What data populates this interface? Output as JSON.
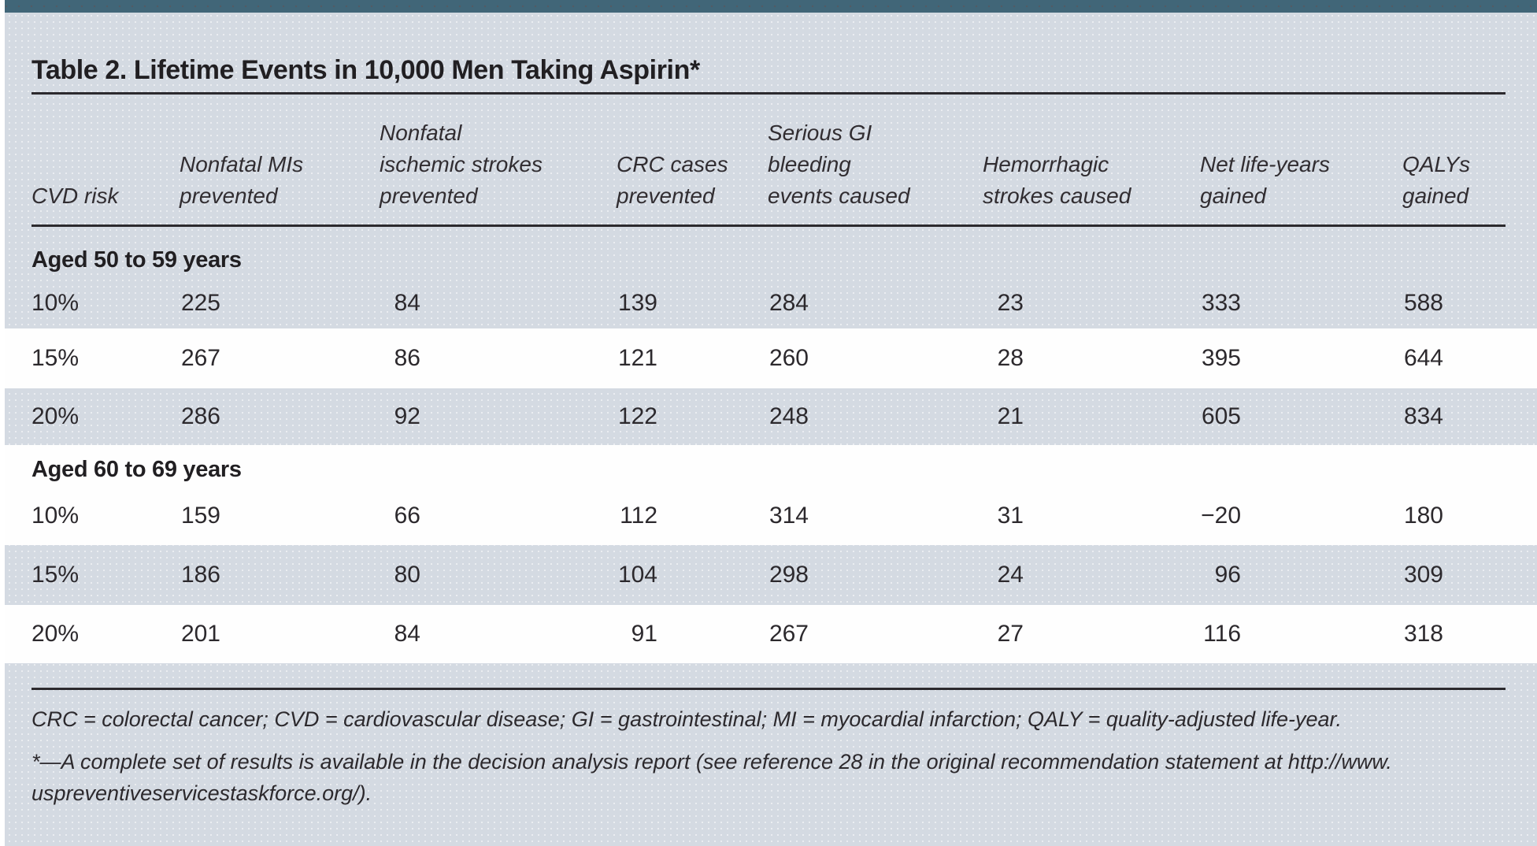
{
  "title": "Table 2. Lifetime Events in 10,000 Men Taking Aspirin*",
  "columns": [
    {
      "lines": [
        "CVD risk"
      ]
    },
    {
      "lines": [
        "Nonfatal MIs",
        "prevented"
      ]
    },
    {
      "lines": [
        "Nonfatal",
        "ischemic strokes",
        "prevented"
      ]
    },
    {
      "lines": [
        "CRC cases",
        "prevented"
      ]
    },
    {
      "lines": [
        "Serious GI",
        "bleeding",
        "events caused"
      ]
    },
    {
      "lines": [
        "Hemorrhagic",
        "strokes caused"
      ]
    },
    {
      "lines": [
        "Net life-years",
        "gained"
      ]
    },
    {
      "lines": [
        "QALYs",
        "gained"
      ]
    }
  ],
  "sections": [
    {
      "header": "Aged 50 to 59 years",
      "rows": [
        {
          "risk": "10%",
          "values": [
            "225",
            "84",
            "139",
            "284",
            "23",
            "333",
            "588"
          ]
        },
        {
          "risk": "15%",
          "values": [
            "267",
            "86",
            "121",
            "260",
            "28",
            "395",
            "644"
          ]
        },
        {
          "risk": "20%",
          "values": [
            "286",
            "92",
            "122",
            "248",
            "21",
            "605",
            "834"
          ]
        }
      ]
    },
    {
      "header": "Aged 60 to 69 years",
      "rows": [
        {
          "risk": "10%",
          "values": [
            "159",
            "66",
            "112",
            "314",
            "31",
            "−20",
            "180"
          ]
        },
        {
          "risk": "15%",
          "values": [
            "186",
            "80",
            "104",
            "298",
            "24",
            "96",
            "309"
          ]
        },
        {
          "risk": "20%",
          "values": [
            "201",
            "84",
            "91",
            "267",
            "27",
            "116",
            "318"
          ]
        }
      ]
    }
  ],
  "footnotes": {
    "abbreviations": "CRC = colorectal cancer; CVD = cardiovascular disease; GI = gastrointestinal; MI = myocardial infarction; QALY = quality-adjusted life-year.",
    "asterisk_line1": "*—A complete set of results is available in the decision analysis report (see reference 28 in the original recommendation statement at http://www.",
    "asterisk_line2": "uspreventiveservicestaskforce.org/)."
  },
  "colors": {
    "border_bar_teal": "#416678",
    "panel_gray": "#d4dae2",
    "stripe_white": "#fefefe",
    "rule_dark": "#2c2a2e",
    "text": "#2c292d"
  }
}
